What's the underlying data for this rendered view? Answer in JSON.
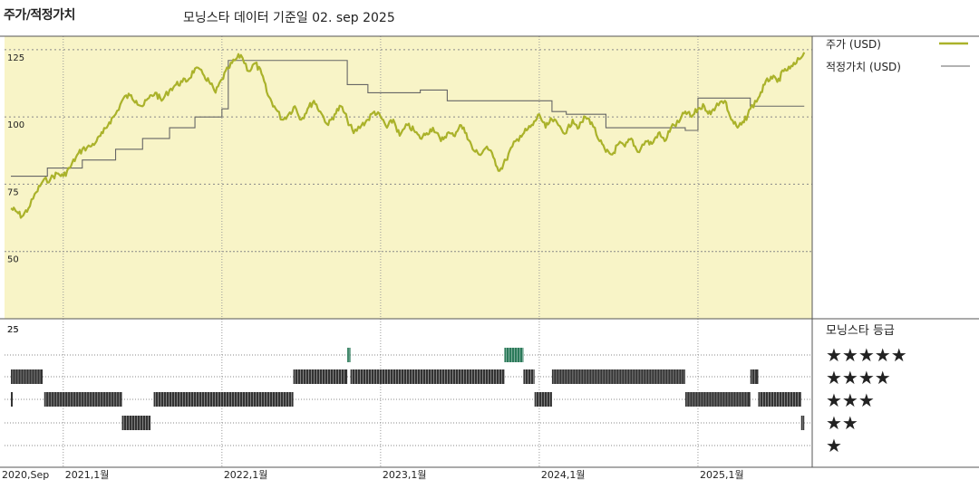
{
  "header": {
    "left_title": "주가/적정가치",
    "center_title": "모닝스타 데이터 기준일 02. sep 2025"
  },
  "legend": {
    "price_label": "주가 (USD)",
    "fair_value_label": "적정가치 (USD)"
  },
  "rating_panel": {
    "title": "모닝스타 등급",
    "stars": [
      "★★★★★",
      "★★★★",
      "★★★",
      "★★",
      "★"
    ]
  },
  "colors": {
    "plot_bg": "#f8f4c7",
    "price_line": "#aab22a",
    "fair_value_line": "#666666",
    "bar_dark": "#333333",
    "bar_teal": "#2c7a5a"
  },
  "chart_data": {
    "type": "line",
    "x_start": "2020-09",
    "x_end": "2025-09-02",
    "ylim": [
      25,
      130
    ],
    "y_ticks": [
      25,
      50,
      75,
      100,
      125
    ],
    "y_tick_labels": [
      "25",
      "50",
      "75",
      "100",
      "125"
    ],
    "x_tick_labels": [
      "2020,Sep",
      "2021,1월",
      "2022,1월",
      "2023,1월",
      "2024,1월",
      "2025,1월"
    ],
    "x_tick_positions": [
      2020.667,
      2021.0,
      2022.0,
      2023.0,
      2024.0,
      2025.0
    ],
    "grid": true,
    "series": [
      {
        "name": "주가 (USD)",
        "x": [
          2020.67,
          2020.7,
          2020.74,
          2020.78,
          2020.83,
          2020.87,
          2020.92,
          2020.96,
          2021.0,
          2021.04,
          2021.08,
          2021.12,
          2021.17,
          2021.21,
          2021.25,
          2021.29,
          2021.33,
          2021.38,
          2021.42,
          2021.46,
          2021.5,
          2021.54,
          2021.58,
          2021.62,
          2021.67,
          2021.71,
          2021.75,
          2021.79,
          2021.83,
          2021.88,
          2021.92,
          2021.96,
          2022.0,
          2022.04,
          2022.08,
          2022.12,
          2022.17,
          2022.21,
          2022.25,
          2022.29,
          2022.33,
          2022.38,
          2022.42,
          2022.46,
          2022.5,
          2022.54,
          2022.58,
          2022.62,
          2022.67,
          2022.71,
          2022.75,
          2022.79,
          2022.83,
          2022.88,
          2022.92,
          2022.96,
          2023.0,
          2023.04,
          2023.08,
          2023.12,
          2023.17,
          2023.21,
          2023.25,
          2023.29,
          2023.33,
          2023.38,
          2023.42,
          2023.46,
          2023.5,
          2023.54,
          2023.58,
          2023.62,
          2023.67,
          2023.71,
          2023.75,
          2023.79,
          2023.83,
          2023.88,
          2023.92,
          2023.96,
          2024.0,
          2024.04,
          2024.08,
          2024.12,
          2024.17,
          2024.21,
          2024.25,
          2024.29,
          2024.33,
          2024.38,
          2024.42,
          2024.46,
          2024.5,
          2024.54,
          2024.58,
          2024.62,
          2024.67,
          2024.71,
          2024.75,
          2024.79,
          2024.83,
          2024.88,
          2024.92,
          2024.96,
          2025.0,
          2025.04,
          2025.08,
          2025.12,
          2025.17,
          2025.21,
          2025.25,
          2025.29,
          2025.33,
          2025.38,
          2025.42,
          2025.46,
          2025.5,
          2025.54,
          2025.58,
          2025.62,
          2025.67
        ],
        "values": [
          66,
          65,
          63,
          66,
          72,
          76,
          77,
          79,
          78,
          81,
          85,
          88,
          89,
          91,
          94,
          98,
          101,
          107,
          108,
          106,
          104,
          107,
          109,
          106,
          110,
          112,
          113,
          114,
          118,
          116,
          113,
          109,
          114,
          118,
          121,
          123,
          117,
          120,
          116,
          108,
          104,
          99,
          101,
          104,
          99,
          103,
          106,
          102,
          97,
          101,
          104,
          99,
          94,
          97,
          99,
          102,
          100,
          96,
          99,
          93,
          97,
          95,
          92,
          94,
          96,
          91,
          94,
          93,
          97,
          94,
          88,
          86,
          89,
          85,
          80,
          84,
          89,
          93,
          95,
          97,
          101,
          96,
          99,
          97,
          94,
          99,
          96,
          100,
          98,
          91,
          87,
          86,
          90,
          89,
          92,
          87,
          91,
          90,
          94,
          91,
          96,
          98,
          102,
          100,
          103,
          104,
          101,
          105,
          106,
          99,
          96,
          98,
          103,
          107,
          112,
          115,
          113,
          117,
          118,
          120,
          124
        ]
      },
      {
        "name": "적정가치 (USD)",
        "steps": [
          [
            2020.67,
            78
          ],
          [
            2020.9,
            81
          ],
          [
            2021.12,
            84
          ],
          [
            2021.33,
            88
          ],
          [
            2021.5,
            92
          ],
          [
            2021.67,
            96
          ],
          [
            2021.83,
            100
          ],
          [
            2022.0,
            103
          ],
          [
            2022.04,
            121
          ],
          [
            2022.79,
            112
          ],
          [
            2022.92,
            109
          ],
          [
            2023.25,
            110
          ],
          [
            2023.42,
            106
          ],
          [
            2024.08,
            102
          ],
          [
            2024.17,
            101
          ],
          [
            2024.42,
            96
          ],
          [
            2024.92,
            95
          ],
          [
            2025.0,
            107
          ],
          [
            2025.33,
            104
          ],
          [
            2025.67,
            104
          ]
        ]
      }
    ],
    "rating_bars": {
      "rows": [
        "5 stars",
        "4 stars",
        "3 stars",
        "2 stars",
        "1 star"
      ],
      "segments": [
        {
          "stars": 4,
          "from": 2020.67,
          "to": 2020.87
        },
        {
          "stars": 3,
          "from": 2020.67,
          "to": 2020.68
        },
        {
          "stars": 3,
          "from": 2020.88,
          "to": 2021.37
        },
        {
          "stars": 2,
          "from": 2021.37,
          "to": 2021.55
        },
        {
          "stars": 3,
          "from": 2021.57,
          "to": 2022.45
        },
        {
          "stars": 4,
          "from": 2022.45,
          "to": 2022.79
        },
        {
          "stars": 5,
          "from": 2022.79,
          "to": 2022.81
        },
        {
          "stars": 4,
          "from": 2022.81,
          "to": 2023.78
        },
        {
          "stars": 5,
          "from": 2023.78,
          "to": 2023.9
        },
        {
          "stars": 4,
          "from": 2023.9,
          "to": 2023.97
        },
        {
          "stars": 3,
          "from": 2023.97,
          "to": 2024.08
        },
        {
          "stars": 4,
          "from": 2024.08,
          "to": 2024.92
        },
        {
          "stars": 3,
          "from": 2024.92,
          "to": 2025.33
        },
        {
          "stars": 4,
          "from": 2025.33,
          "to": 2025.38
        },
        {
          "stars": 3,
          "from": 2025.38,
          "to": 2025.65
        },
        {
          "stars": 2,
          "from": 2025.65,
          "to": 2025.67
        }
      ]
    }
  }
}
